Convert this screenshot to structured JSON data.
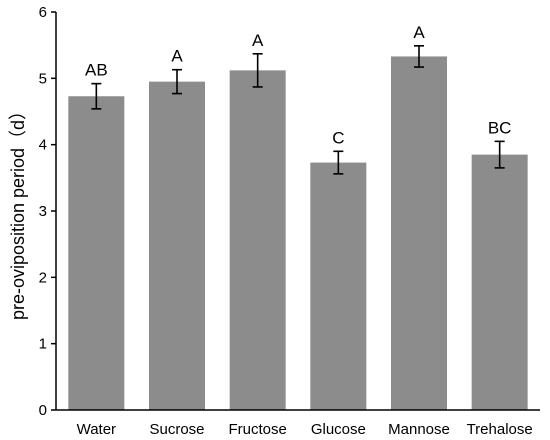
{
  "chart_data": {
    "type": "bar",
    "title": "",
    "xlabel": "",
    "ylabel": "pre-oviposition period（d）",
    "categories": [
      "Water",
      "Sucrose",
      "Fructose",
      "Glucose",
      "Mannose",
      "Trehalose"
    ],
    "values": [
      4.73,
      4.95,
      5.12,
      3.73,
      5.33,
      3.85
    ],
    "errors": [
      0.19,
      0.18,
      0.25,
      0.17,
      0.16,
      0.2
    ],
    "significance_labels": [
      "AB",
      "A",
      "A",
      "C",
      "A",
      "BC"
    ],
    "ylim": [
      0,
      6
    ],
    "yticks": [
      0,
      1,
      2,
      3,
      4,
      5,
      6
    ],
    "grid": false,
    "bar_color": "#8c8c8c",
    "axis_color": "#000000"
  }
}
